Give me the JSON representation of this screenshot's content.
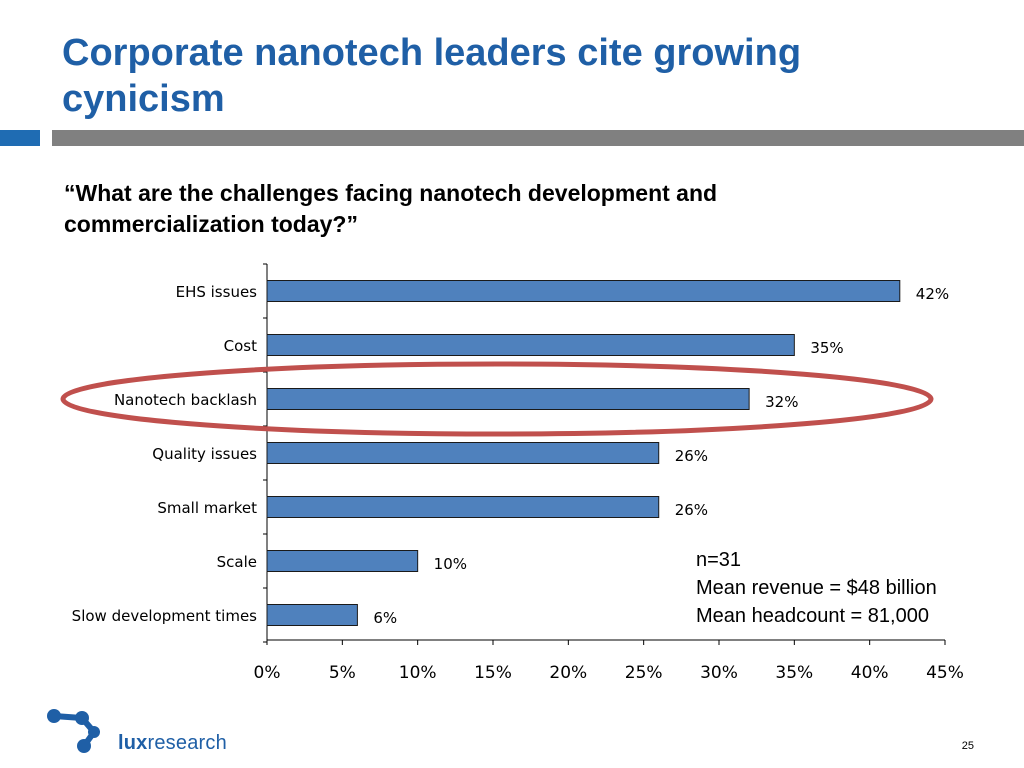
{
  "slide": {
    "title": "Corporate nanotech leaders cite growing cynicism",
    "subtitle": "“What are the challenges facing nanotech development and commercialization today?”",
    "page_number": "25"
  },
  "stats": {
    "n": "n=31",
    "revenue": "Mean revenue = $48 billion",
    "headcount": "Mean headcount = 81,000"
  },
  "logo": {
    "icon": "lux-dots-logo",
    "text_bold": "lux",
    "text_regular": "research"
  },
  "colors": {
    "title": "#1f5fa6",
    "bar": "#4f81bd",
    "highlight_ellipse": "#c0504d",
    "rule": "#808080",
    "accent": "#1f6cb3"
  },
  "chart_data": {
    "type": "bar",
    "orientation": "horizontal",
    "categories": [
      "EHS issues",
      "Cost",
      "Nanotech backlash",
      "Quality issues",
      "Small market",
      "Scale",
      "Slow development times"
    ],
    "values": [
      42,
      35,
      32,
      26,
      26,
      10,
      6
    ],
    "value_labels": [
      "42%",
      "35%",
      "32%",
      "26%",
      "26%",
      "10%",
      "6%"
    ],
    "xlim": [
      0,
      45
    ],
    "x_ticks": [
      0,
      5,
      10,
      15,
      20,
      25,
      30,
      35,
      40,
      45
    ],
    "x_tick_labels": [
      "0%",
      "5%",
      "10%",
      "15%",
      "20%",
      "25%",
      "30%",
      "35%",
      "40%",
      "45%"
    ],
    "grid": false,
    "highlighted_category": "Nanotech backlash"
  }
}
